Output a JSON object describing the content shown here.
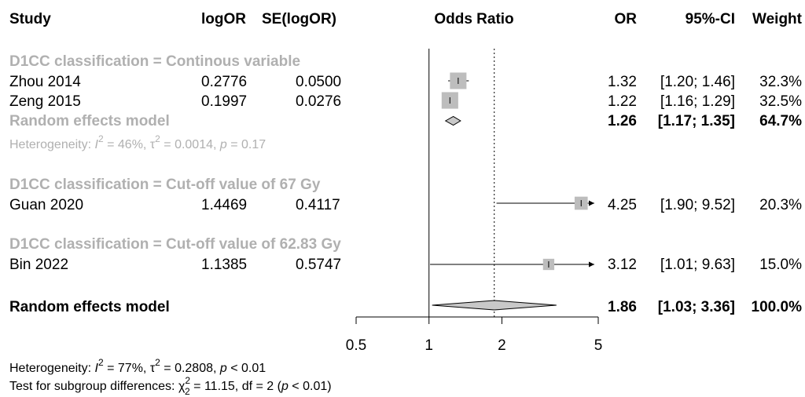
{
  "header": {
    "study": "Study",
    "logor": "logOR",
    "se": "SE(logOR)",
    "odds_ratio": "Odds Ratio",
    "or": "OR",
    "ci": "95%-CI",
    "weight": "Weight"
  },
  "footer": {
    "heterogeneity": "Heterogeneity:",
    "i2": "I",
    "i2_val": " = 77%, ",
    "tau": "τ",
    "tau_val": " = 0.2808, ",
    "p": "p",
    "p_val": " < 0.01",
    "subgroup": "Test for subgroup differences: ",
    "chi": "χ",
    "chi_val": " = 11.15, df = 2 (",
    "chi_p": "p",
    "chi_p_val": " < 0.01)",
    "sup2": "2",
    "sub2": "2"
  },
  "chart_data": {
    "type": "forest",
    "title": "",
    "xlabel": "",
    "x_scale": "log",
    "xlim": [
      0.5,
      5
    ],
    "x_ticks": [
      "0.5",
      "1",
      "2",
      "5"
    ],
    "null_line": 1,
    "overall_line": 1.86,
    "subgroups": [
      {
        "label": "D1CC classification = Continous variable",
        "studies": [
          {
            "name": "Zhou 2014",
            "logor": "0.2776",
            "se": "0.0500",
            "or": 1.32,
            "lower": 1.2,
            "upper": 1.46,
            "or_text": "1.32",
            "ci_text": "[1.20; 1.46]",
            "weight_text": "32.3%",
            "weight": 32.3
          },
          {
            "name": "Zeng 2015",
            "logor": "0.1997",
            "se": "0.0276",
            "or": 1.22,
            "lower": 1.16,
            "upper": 1.29,
            "or_text": "1.22",
            "ci_text": "[1.16; 1.29]",
            "weight_text": "32.5%",
            "weight": 32.5
          }
        ],
        "pooled": {
          "label": "Random effects model",
          "or": 1.26,
          "lower": 1.17,
          "upper": 1.35,
          "or_text": "1.26",
          "ci_text": "[1.17; 1.35]",
          "weight_text": "64.7%"
        },
        "heterogeneity": {
          "prefix": "Heterogeneity: ",
          "i2": "I",
          "i2_val": " = 46%, ",
          "tau": "τ",
          "tau_val": " = 0.0014, ",
          "p": "p",
          "p_val": " = 0.17"
        }
      },
      {
        "label": "D1CC classification = Cut-off value of 67 Gy",
        "studies": [
          {
            "name": "Guan 2020",
            "logor": "1.4469",
            "se": "0.4117",
            "or": 4.25,
            "lower": 1.9,
            "upper": 9.52,
            "or_text": "4.25",
            "ci_text": "[1.90; 9.52]",
            "weight_text": "20.3%",
            "weight": 20.3
          }
        ]
      },
      {
        "label": "D1CC classification = Cut-off value of 62.83 Gy",
        "studies": [
          {
            "name": "Bin 2022",
            "logor": "1.1385",
            "se": "0.5747",
            "or": 3.12,
            "lower": 1.01,
            "upper": 9.63,
            "or_text": "3.12",
            "ci_text": "[1.01; 9.63]",
            "weight_text": "15.0%",
            "weight": 15.0
          }
        ]
      }
    ],
    "overall": {
      "label": "Random effects model",
      "or": 1.86,
      "lower": 1.03,
      "upper": 3.36,
      "or_text": "1.86",
      "ci_text": "[1.03; 3.36]",
      "weight_text": "100.0%"
    },
    "colors": {
      "box": "#bdbdbd",
      "diamond": "#c8c8c8",
      "subgroup_text": "#b0b0b0"
    }
  }
}
